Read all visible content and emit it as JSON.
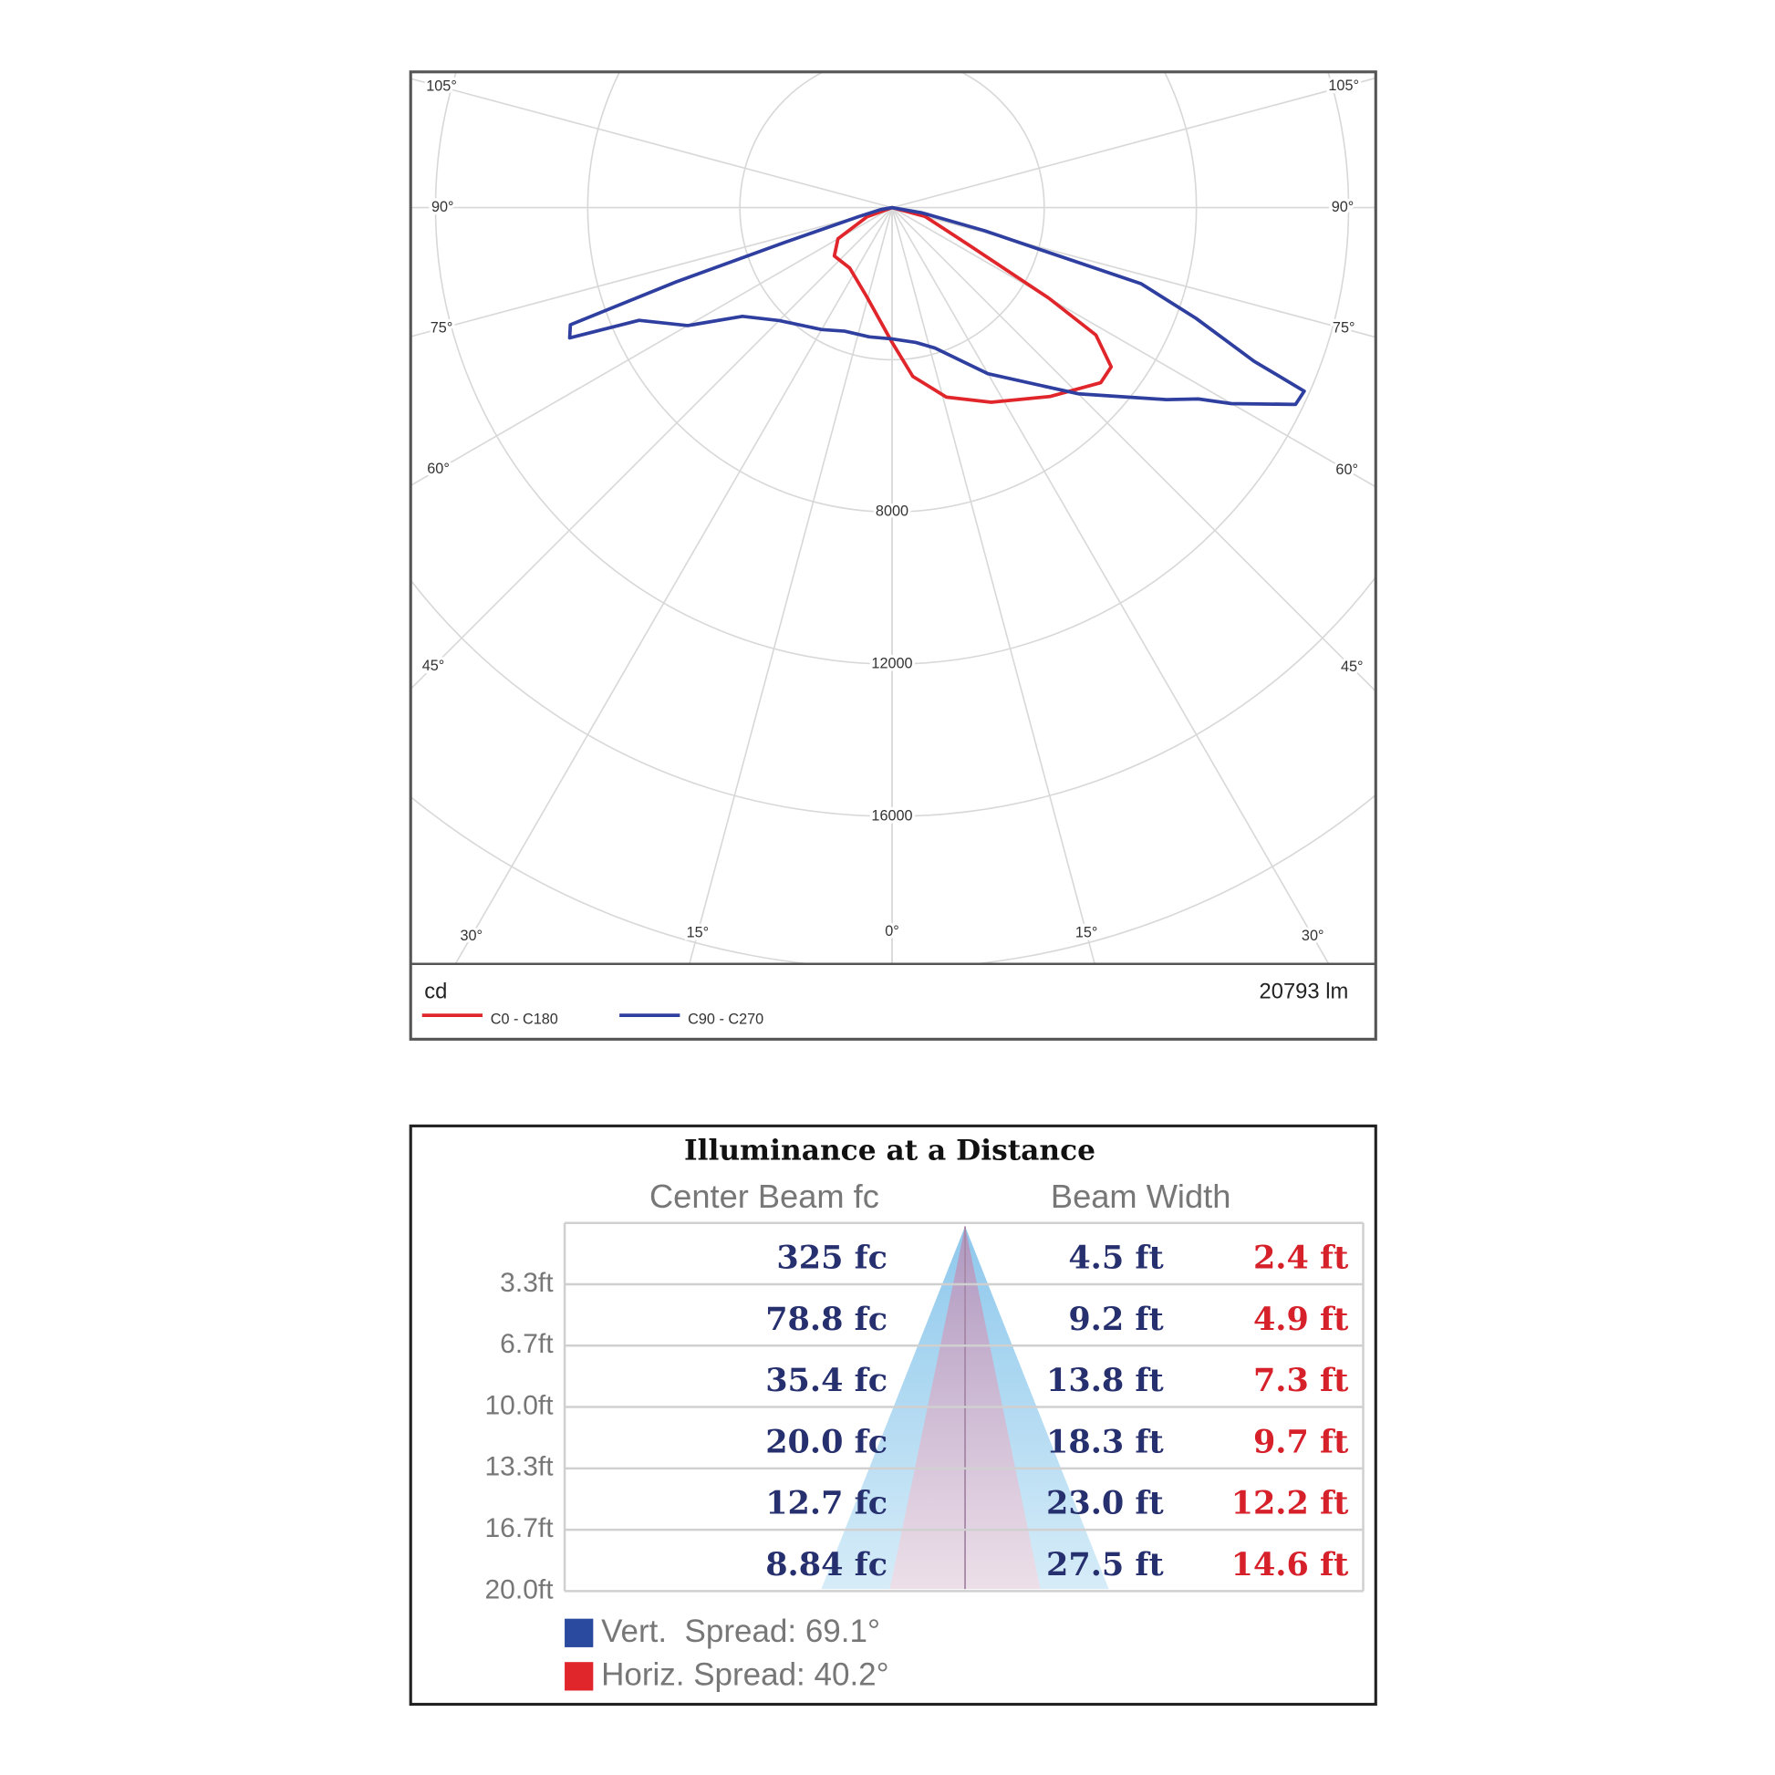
{
  "chart_data": {
    "type": "polar",
    "unit_label": "cd",
    "flux_label": "20793 lm",
    "rlim": [
      0,
      20000
    ],
    "rgrid": [
      4000,
      8000,
      12000,
      16000,
      20000
    ],
    "rticks": [
      8000,
      12000,
      16000
    ],
    "angle_ticks": [
      {
        "value": 0,
        "label": "0°"
      },
      {
        "value": 15,
        "label": "15°"
      },
      {
        "value": 30,
        "label": "30°"
      },
      {
        "value": 45,
        "label": "45°"
      },
      {
        "value": 60,
        "label": "60°"
      },
      {
        "value": 75,
        "label": "75°"
      },
      {
        "value": 90,
        "label": "90°"
      },
      {
        "value": 105,
        "label": "105°"
      }
    ],
    "series": [
      {
        "name": "C0 - C180",
        "color": "#e0262b",
        "angles": [
          -90,
          -70,
          -60,
          -50,
          -35,
          -16,
          0,
          7,
          16,
          27,
          40,
          50,
          54,
          58,
          60,
          64,
          75,
          90
        ],
        "values": [
          0,
          700,
          1640,
          1980,
          1940,
          2430,
          3540,
          4470,
          5180,
          5740,
          6480,
          7160,
          7120,
          6320,
          4760,
          2270,
          900,
          0
        ]
      },
      {
        "name": "C90 - C270",
        "color": "#2f3fa0",
        "angles": [
          -90,
          -80,
          -75,
          -72,
          -71,
          -70,
          -68,
          -66,
          -60,
          -54,
          -45,
          -30,
          -21,
          -10,
          0,
          10,
          17,
          30,
          45,
          55,
          58,
          60,
          64,
          66,
          67,
          70,
          73,
          76,
          80,
          90
        ],
        "values": [
          0,
          300,
          900,
          3000,
          6000,
          9000,
          9140,
          7280,
          6200,
          4860,
          4200,
          3700,
          3480,
          3450,
          3450,
          3600,
          3860,
          5040,
          6920,
          8800,
          9490,
          10300,
          11800,
          11860,
          10340,
          8500,
          6850,
          2500,
          800,
          0
        ]
      }
    ]
  },
  "illuminance": {
    "title": "Illuminance at a Distance",
    "headers": [
      "Center Beam fc",
      "Beam Width"
    ],
    "rows": [
      {
        "distance": "3.3ft",
        "center_beam": "325 fc",
        "vert_width": "4.5 ft",
        "horiz_width": "2.4 ft"
      },
      {
        "distance": "6.7ft",
        "center_beam": "78.8 fc",
        "vert_width": "9.2 ft",
        "horiz_width": "4.9 ft"
      },
      {
        "distance": "10.0ft",
        "center_beam": "35.4 fc",
        "vert_width": "13.8 ft",
        "horiz_width": "7.3 ft"
      },
      {
        "distance": "13.3ft",
        "center_beam": "20.0 fc",
        "vert_width": "18.3 ft",
        "horiz_width": "9.7 ft"
      },
      {
        "distance": "16.7ft",
        "center_beam": "12.7 fc",
        "vert_width": "23.0 ft",
        "horiz_width": "12.2 ft"
      },
      {
        "distance": "20.0ft",
        "center_beam": "8.84 fc",
        "vert_width": "27.5 ft",
        "horiz_width": "14.6 ft"
      }
    ],
    "legend": [
      {
        "label": "Vert.  Spread: 69.1°",
        "color": "#2a4aa0"
      },
      {
        "label": "Horiz. Spread: 40.2°",
        "color": "#e0262b"
      }
    ]
  }
}
